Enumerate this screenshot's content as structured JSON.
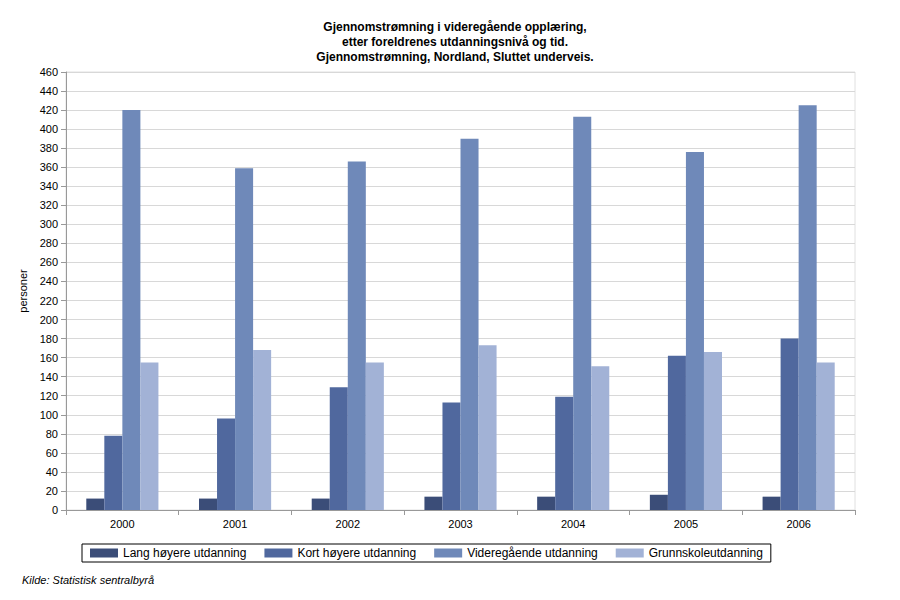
{
  "chart_data": {
    "type": "bar",
    "title": "Gjennomstrømning i videregående opplæring,\netter foreldrenes utdanningsnivå og tid.\nGjennomstrømning, Nordland, Sluttet underveis.",
    "y_label": "personer",
    "source": "Kilde: Statistisk sentralbyrå",
    "categories": [
      "2000",
      "2001",
      "2002",
      "2003",
      "2004",
      "2005",
      "2006"
    ],
    "series": [
      {
        "name": "Lang høyere utdanning",
        "color": "#3b4d78",
        "values": [
          12,
          12,
          12,
          14,
          14,
          16,
          14
        ]
      },
      {
        "name": "Kort høyere utdanning",
        "color": "#50689e",
        "values": [
          78,
          96,
          129,
          113,
          119,
          162,
          180
        ]
      },
      {
        "name": "Videregående utdanning",
        "color": "#6f89b9",
        "values": [
          420,
          359,
          366,
          390,
          413,
          376,
          425
        ]
      },
      {
        "name": "Grunnskoleutdanning",
        "color": "#a2b2d6",
        "values": [
          155,
          168,
          155,
          173,
          151,
          166,
          155
        ]
      }
    ],
    "ylim": [
      0,
      460
    ],
    "yticks": [
      0,
      20,
      40,
      60,
      80,
      100,
      120,
      140,
      160,
      180,
      200,
      220,
      240,
      260,
      280,
      300,
      320,
      340,
      360,
      380,
      400,
      420,
      440,
      460
    ],
    "grid": true,
    "legend": "bottom"
  }
}
